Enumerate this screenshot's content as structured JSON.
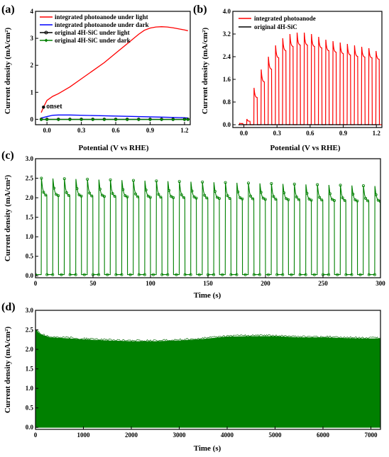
{
  "chart_data": [
    {
      "id": "a",
      "type": "line",
      "panel_label": "(a)",
      "xlabel": "Potential (V vs RHE)",
      "ylabel": "Current density (mA/cm²)",
      "xlim": [
        -0.1,
        1.25
      ],
      "ylim": [
        -0.2,
        4.0
      ],
      "xticks": [
        0.0,
        0.3,
        0.6,
        0.9,
        1.2
      ],
      "xtick_labels": [
        "0.0",
        "0.3",
        "0.6",
        "0.9",
        "1.2"
      ],
      "yticks": [
        0,
        1,
        2,
        3,
        4
      ],
      "ytick_labels": [
        "0",
        "1",
        "2",
        "3",
        "4"
      ],
      "legend_position": "top-left",
      "annotation": {
        "text": "onset",
        "x": -0.03,
        "y": 0.45
      },
      "series": [
        {
          "name": "integrated photoanode under light",
          "color": "#ff0000",
          "marker": "none",
          "x": [
            -0.05,
            -0.03,
            0.0,
            0.05,
            0.1,
            0.2,
            0.3,
            0.4,
            0.5,
            0.6,
            0.7,
            0.8,
            0.85,
            0.9,
            0.95,
            1.0,
            1.05,
            1.1,
            1.15,
            1.2,
            1.23
          ],
          "y": [
            0.25,
            0.45,
            0.7,
            0.85,
            0.95,
            1.2,
            1.5,
            1.8,
            2.1,
            2.45,
            2.8,
            3.15,
            3.3,
            3.38,
            3.42,
            3.43,
            3.42,
            3.39,
            3.35,
            3.31,
            3.28
          ]
        },
        {
          "name": "integrated photoanode under dark",
          "color": "#0000ff",
          "marker": "none",
          "x": [
            -0.05,
            0.0,
            0.05,
            0.1,
            0.2,
            0.4,
            0.6,
            0.8,
            1.0,
            1.2,
            1.23
          ],
          "y": [
            0.05,
            0.1,
            0.15,
            0.16,
            0.16,
            0.14,
            0.12,
            0.1,
            0.08,
            0.06,
            0.05
          ]
        },
        {
          "name": "original 4H-SiC under light",
          "color": "#000000",
          "marker": "circle",
          "x": [
            -0.05,
            0.0,
            0.1,
            0.2,
            0.3,
            0.4,
            0.5,
            0.6,
            0.7,
            0.8,
            0.9,
            1.0,
            1.1,
            1.2,
            1.23
          ],
          "y": [
            0,
            0,
            0,
            0,
            0,
            0,
            0,
            0,
            0,
            0,
            0,
            0,
            0,
            0,
            0
          ]
        },
        {
          "name": "original 4H-SiC under dark",
          "color": "#008000",
          "marker": "diamond",
          "x": [
            -0.05,
            0.0,
            0.1,
            0.2,
            0.3,
            0.4,
            0.5,
            0.6,
            0.7,
            0.8,
            0.9,
            1.0,
            1.1,
            1.2,
            1.23
          ],
          "y": [
            -0.01,
            -0.01,
            -0.01,
            -0.01,
            -0.01,
            -0.01,
            -0.01,
            -0.01,
            -0.01,
            -0.01,
            -0.01,
            -0.01,
            -0.01,
            -0.01,
            -0.01
          ]
        }
      ]
    },
    {
      "id": "b",
      "type": "line",
      "panel_label": "(b)",
      "xlabel": "Potential (V vs RHE)",
      "ylabel": "Current density (mA/cm²)",
      "xlim": [
        -0.1,
        1.25
      ],
      "ylim": [
        -0.1,
        4.0
      ],
      "xticks": [
        0.0,
        0.3,
        0.6,
        0.9,
        1.2
      ],
      "xtick_labels": [
        "0.0",
        "0.3",
        "0.6",
        "0.9",
        "1.2"
      ],
      "yticks": [
        0.0,
        0.8,
        1.6,
        2.4,
        3.2,
        4.0
      ],
      "ytick_labels": [
        "0.0",
        "0.8",
        "1.6",
        "2.4",
        "3.2",
        "4.0"
      ],
      "legend_position": "top-left",
      "pulse_period_v": 0.065,
      "series": [
        {
          "name": "integrated photoanode",
          "color": "#ff0000",
          "pulse_start_v": [
            -0.04,
            0.025,
            0.09,
            0.155,
            0.22,
            0.285,
            0.35,
            0.415,
            0.48,
            0.545,
            0.61,
            0.675,
            0.74,
            0.805,
            0.87,
            0.935,
            1.0,
            1.065,
            1.13,
            1.195
          ],
          "pulse_peak": [
            0.05,
            0.2,
            1.3,
            1.95,
            2.4,
            2.8,
            3.05,
            3.2,
            3.25,
            3.25,
            3.2,
            3.1,
            3.0,
            2.95,
            2.9,
            2.85,
            2.8,
            2.75,
            2.7,
            2.6
          ],
          "pulse_end": [
            0.04,
            0.12,
            0.95,
            1.5,
            1.95,
            2.35,
            2.6,
            2.75,
            2.8,
            2.8,
            2.75,
            2.7,
            2.6,
            2.55,
            2.5,
            2.45,
            2.4,
            2.38,
            2.35,
            2.3
          ]
        },
        {
          "name": "original 4H-SiC",
          "color": "#000000",
          "x": [
            -0.05,
            1.23
          ],
          "y": [
            0,
            0
          ]
        }
      ]
    },
    {
      "id": "c",
      "type": "line",
      "panel_label": "(c)",
      "xlabel": "Time (s)",
      "ylabel": "Current density (mA/cm²)",
      "xlim": [
        0,
        300
      ],
      "ylim": [
        -0.05,
        3.0
      ],
      "xticks": [
        0,
        50,
        100,
        150,
        200,
        250,
        300
      ],
      "xtick_labels": [
        "0",
        "50",
        "100",
        "150",
        "200",
        "250",
        "300"
      ],
      "yticks": [
        0.0,
        0.5,
        1.0,
        1.5,
        2.0,
        2.5,
        3.0
      ],
      "ytick_labels": [
        "0.0",
        "0.5",
        "1.0",
        "1.5",
        "2.0",
        "2.5",
        "3.0"
      ],
      "series": [
        {
          "name": "",
          "color": "#008000",
          "marker": "circle",
          "cycle_period_s": 10,
          "on_duration_s": 5,
          "first_on_s": 5,
          "cycles": 30,
          "on_peak": 2.5,
          "on_steady": 2.05,
          "on_peak_end": 2.3,
          "on_steady_end": 1.9,
          "off_level": 0.03
        }
      ]
    },
    {
      "id": "d",
      "type": "area",
      "panel_label": "(d)",
      "xlabel": "Time (s)",
      "ylabel": "Current density (mA/cm²)",
      "xlim": [
        0,
        7200
      ],
      "ylim": [
        -0.05,
        3.0
      ],
      "xticks": [
        0,
        1000,
        2000,
        3000,
        4000,
        5000,
        6000,
        7000
      ],
      "xtick_labels": [
        "0",
        "1000",
        "2000",
        "3000",
        "4000",
        "5000",
        "6000",
        "7000"
      ],
      "yticks": [
        0.0,
        0.5,
        1.0,
        1.5,
        2.0,
        2.5,
        3.0
      ],
      "ytick_labels": [
        "0.0",
        "0.5",
        "1.0",
        "1.5",
        "2.0",
        "2.5",
        "3.0"
      ],
      "series": [
        {
          "name": "",
          "color": "#008000",
          "x": [
            0,
            100,
            300,
            600,
            1000,
            1500,
            2000,
            2500,
            3000,
            3500,
            4000,
            4500,
            5000,
            5500,
            6000,
            6500,
            7000,
            7200
          ],
          "y": [
            2.5,
            2.38,
            2.3,
            2.28,
            2.25,
            2.22,
            2.2,
            2.2,
            2.22,
            2.26,
            2.32,
            2.33,
            2.33,
            2.3,
            2.3,
            2.28,
            2.27,
            2.27
          ],
          "lower": 0.0
        }
      ]
    }
  ]
}
